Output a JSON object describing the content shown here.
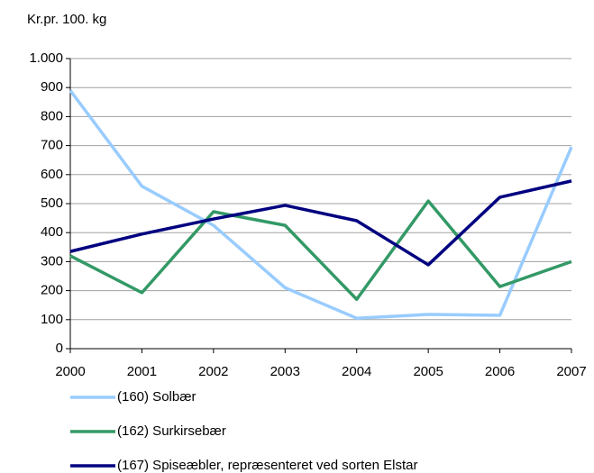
{
  "chart_data": {
    "type": "line",
    "y_axis_label": "Kr.pr. 100. kg",
    "categories": [
      "2000",
      "2001",
      "2002",
      "2003",
      "2004",
      "2005",
      "2006",
      "2007"
    ],
    "series": [
      {
        "name": "(160) Solbær",
        "color": "#99ccff",
        "values": [
          890,
          560,
          425,
          210,
          105,
          118,
          115,
          695
        ]
      },
      {
        "name": "(162) Surkirsebær",
        "color": "#339966",
        "values": [
          320,
          193,
          472,
          425,
          170,
          509,
          214,
          300
        ]
      },
      {
        "name": "(167) Spiseæbler, repræsenteret ved sorten Elstar",
        "color": "#000080",
        "values": [
          335,
          395,
          447,
          494,
          441,
          289,
          522,
          578
        ]
      }
    ],
    "ylim": [
      0,
      1000
    ],
    "yticks": [
      0,
      100,
      200,
      300,
      400,
      500,
      600,
      700,
      800,
      900,
      {
        "value": 1000,
        "label": "1.000"
      }
    ],
    "grid": true
  }
}
